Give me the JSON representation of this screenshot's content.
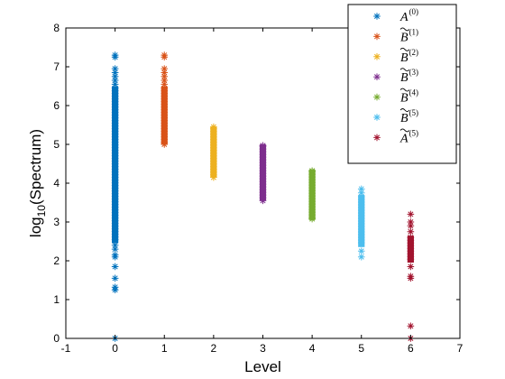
{
  "chart_data": {
    "type": "scatter",
    "xlabel": "Level",
    "ylabel_base": "log",
    "ylabel_sub": "10",
    "ylabel_rest": "(Spectrum)",
    "xlim": [
      -1,
      7
    ],
    "ylim": [
      0,
      8
    ],
    "x_ticks": [
      -1,
      0,
      1,
      2,
      3,
      4,
      5,
      6,
      7
    ],
    "y_ticks": [
      0,
      1,
      2,
      3,
      4,
      5,
      6,
      7,
      8
    ],
    "x_tick_labels": [
      "-1",
      "0",
      "1",
      "2",
      "3",
      "4",
      "5",
      "6",
      "7"
    ],
    "y_tick_labels": [
      "0",
      "1",
      "2",
      "3",
      "4",
      "5",
      "6",
      "7",
      "8"
    ],
    "grid": false,
    "marker": "asterisk",
    "legend_position": "top-right",
    "series": [
      {
        "legend_base": "A",
        "legend_tilde": false,
        "legend_sup": "(0)",
        "color": "#0072BD",
        "x": 0,
        "dense_range": [
          2.5,
          6.45
        ],
        "points": [
          0.0,
          1.25,
          1.32,
          1.55,
          1.85,
          2.1,
          2.15,
          2.3,
          2.4,
          6.55,
          6.65,
          6.75,
          6.85,
          6.95,
          7.25,
          7.3
        ]
      },
      {
        "legend_base": "B",
        "legend_tilde": true,
        "legend_sup": "(1)",
        "color": "#D95319",
        "x": 1,
        "dense_range": [
          5.05,
          6.45
        ],
        "points": [
          5.0,
          6.55,
          6.65,
          6.75,
          6.85,
          6.95,
          7.25,
          7.3
        ]
      },
      {
        "legend_base": "B",
        "legend_tilde": true,
        "legend_sup": "(2)",
        "color": "#EDB120",
        "x": 2,
        "dense_range": [
          4.2,
          5.4
        ],
        "points": [
          4.15,
          5.45
        ]
      },
      {
        "legend_base": "B",
        "legend_tilde": true,
        "legend_sup": "(3)",
        "color": "#7E2F8E",
        "x": 3,
        "dense_range": [
          3.6,
          4.95
        ],
        "points": [
          3.55,
          4.97
        ]
      },
      {
        "legend_base": "B",
        "legend_tilde": true,
        "legend_sup": "(4)",
        "color": "#77AC30",
        "x": 4,
        "dense_range": [
          3.1,
          4.3
        ],
        "points": [
          3.08,
          4.32
        ]
      },
      {
        "legend_base": "B",
        "legend_tilde": true,
        "legend_sup": "(5)",
        "color": "#4DBEEE",
        "x": 5,
        "dense_range": [
          2.4,
          3.65
        ],
        "points": [
          2.1,
          2.25,
          3.75,
          3.85
        ]
      },
      {
        "legend_base": "A",
        "legend_tilde": true,
        "legend_sup": "(5)",
        "color": "#A2142F",
        "x": 6,
        "dense_range": [
          2.0,
          2.6
        ],
        "points": [
          0.0,
          0.32,
          1.55,
          1.6,
          1.85,
          2.75,
          2.9,
          3.0,
          3.2
        ]
      }
    ]
  }
}
